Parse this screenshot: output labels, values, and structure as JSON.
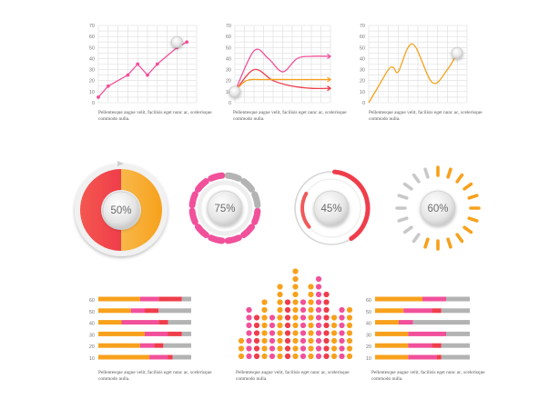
{
  "colors": {
    "pink": "#f1509a",
    "red": "#ef3d4b",
    "orange": "#f7a11c",
    "gray": "#b3b3b3",
    "grid": "#dddddd"
  },
  "caption_text": "Pellentesque augue velit, facilisis eget nunc ac, scelerisque commodo nulla.",
  "line_charts": [
    {
      "type": "line",
      "y_ticks": [
        "0",
        "10",
        "20",
        "30",
        "40",
        "50",
        "60",
        "70"
      ],
      "ylim": [
        0,
        70
      ],
      "xlim": [
        0,
        10
      ],
      "series": [
        {
          "color": "#f1509a",
          "points": [
            [
              0,
              5
            ],
            [
              1,
              15
            ],
            [
              3,
              25
            ],
            [
              4,
              35
            ],
            [
              5,
              25
            ],
            [
              6,
              35
            ],
            [
              8,
              50
            ],
            [
              9,
              55
            ]
          ]
        }
      ]
    },
    {
      "type": "line",
      "y_ticks": [
        "0",
        "10",
        "20",
        "30",
        "40",
        "50",
        "60",
        "70"
      ],
      "ylim": [
        0,
        70
      ],
      "xlim": [
        0,
        10
      ],
      "series": [
        {
          "color": "#f1509a",
          "points": [
            [
              0,
              10
            ],
            [
              2,
              47
            ],
            [
              3.5,
              40
            ],
            [
              5,
              28
            ],
            [
              6.5,
              40
            ],
            [
              8,
              42
            ],
            [
              10,
              42
            ]
          ]
        },
        {
          "color": "#ef3d4b",
          "points": [
            [
              0,
              10
            ],
            [
              2,
              30
            ],
            [
              4,
              20
            ],
            [
              6,
              15
            ],
            [
              8,
              13
            ],
            [
              10,
              13
            ]
          ]
        },
        {
          "color": "#f7a11c",
          "points": [
            [
              0,
              10
            ],
            [
              1.2,
              20
            ],
            [
              3,
              21
            ],
            [
              6,
              21
            ],
            [
              10,
              21
            ]
          ]
        }
      ]
    },
    {
      "type": "line",
      "y_ticks": [
        "0",
        "10",
        "20",
        "30",
        "40",
        "50",
        "60",
        "70"
      ],
      "ylim": [
        0,
        70
      ],
      "xlim": [
        0,
        10
      ],
      "series": [
        {
          "color": "#f7a11c",
          "points": [
            [
              0,
              0
            ],
            [
              1,
              15
            ],
            [
              2,
              30
            ],
            [
              2.5,
              32
            ],
            [
              3,
              28
            ],
            [
              4,
              50
            ],
            [
              4.8,
              50
            ],
            [
              6.5,
              18
            ],
            [
              8,
              30
            ],
            [
              9,
              45
            ]
          ]
        }
      ]
    }
  ],
  "gauges": [
    {
      "label": "50%",
      "value": 50,
      "style": "donut"
    },
    {
      "label": "75%",
      "value": 75,
      "style": "segments"
    },
    {
      "label": "45%",
      "value": 45,
      "style": "arc"
    },
    {
      "label": "60%",
      "value": 60,
      "style": "ticks"
    }
  ],
  "stacked_bars_left": {
    "type": "bar",
    "categories": [
      "60",
      "50",
      "40",
      "30",
      "20",
      "10"
    ],
    "series": [
      {
        "color": "#f7a11c",
        "values": [
          45,
          35,
          25,
          50,
          45,
          55
        ]
      },
      {
        "color": "#f1509a",
        "values": [
          20,
          15,
          40,
          25,
          15,
          20
        ]
      },
      {
        "color": "#ef3d4b",
        "values": [
          25,
          15,
          10,
          15,
          10,
          5
        ]
      },
      {
        "color": "#b3b3b3",
        "values": [
          10,
          35,
          25,
          10,
          30,
          20
        ]
      }
    ]
  },
  "dot_columns": {
    "type": "bar",
    "values": [
      3,
      7,
      6,
      8,
      6,
      10,
      8,
      12,
      8,
      10,
      11,
      9,
      6,
      7,
      7
    ],
    "colors": [
      "#f7a11c",
      "#f1509a",
      "#ef3d4b",
      "#f7a11c",
      "#f1509a",
      "#f7a11c",
      "#ef3d4b",
      "#f7a11c",
      "#f1509a",
      "#f7a11c",
      "#f1509a",
      "#ef3d4b",
      "#f7a11c",
      "#f1509a",
      "#f7a11c"
    ]
  },
  "stacked_bars_right": {
    "type": "bar",
    "categories": [
      "60",
      "50",
      "40",
      "30",
      "20",
      "10"
    ],
    "series": [
      {
        "color": "#f7a11c",
        "values": [
          50,
          30,
          25,
          35,
          35,
          35
        ]
      },
      {
        "color": "#f1509a",
        "values": [
          25,
          30,
          15,
          40,
          25,
          30
        ]
      },
      {
        "color": "#ef3d4b",
        "values": [
          0,
          10,
          0,
          0,
          10,
          5
        ]
      },
      {
        "color": "#b3b3b3",
        "values": [
          25,
          30,
          60,
          25,
          30,
          30
        ]
      }
    ]
  }
}
